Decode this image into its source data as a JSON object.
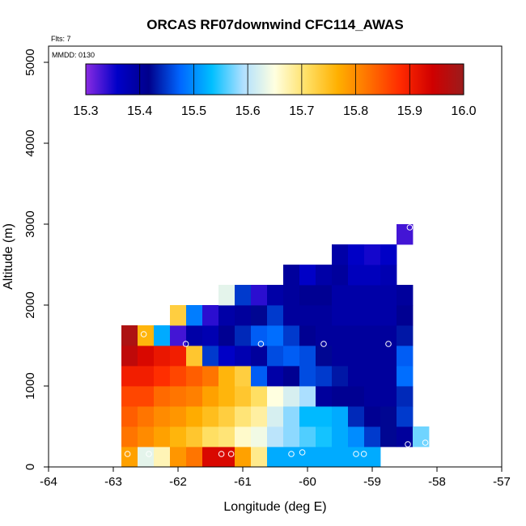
{
  "chart_data": {
    "type": "heatmap",
    "title": "ORCAS RF07downwind CFC114_AWAS",
    "flights_note": "Flts: 7",
    "date_note": "MMDD: 0130",
    "xlabel": "Longitude (deg E)",
    "ylabel": "Altitude (m)",
    "xlim": [
      -64,
      -57
    ],
    "ylim": [
      0,
      5200
    ],
    "x_ticks": [
      -64,
      -63,
      -62,
      -61,
      -60,
      -59,
      -58,
      -57
    ],
    "x_tick_labels": [
      "-64",
      "-63",
      "-62",
      "-61",
      "-60",
      "-59",
      "-58",
      "-57"
    ],
    "y_ticks": [
      0,
      1000,
      2000,
      3000,
      4000,
      5000
    ],
    "y_tick_labels": [
      "0",
      "1000",
      "2000",
      "3000",
      "4000",
      "5000"
    ],
    "cell_width_deg": 0.25,
    "cell_height_m": 250,
    "x_centers": [
      -62.75,
      -62.5,
      -62.25,
      -62.0,
      -61.75,
      -61.5,
      -61.25,
      -61.0,
      -60.75,
      -60.5,
      -60.25,
      -60.0,
      -59.75,
      -59.5,
      -59.25,
      -59.0,
      -58.75,
      -58.5,
      -58.25
    ],
    "y_centers": [
      125,
      375,
      625,
      875,
      1125,
      1375,
      1625,
      1875,
      2125,
      2375,
      2625,
      2875
    ],
    "values_by_altitude_bin": [
      [
        15.78,
        15.63,
        15.67,
        15.79,
        15.82,
        15.93,
        15.93,
        15.78,
        15.69,
        15.52,
        15.52,
        15.52,
        15.52,
        15.52,
        15.52,
        15.52,
        null,
        null,
        null
      ],
      [
        15.82,
        15.8,
        15.78,
        15.76,
        15.74,
        15.71,
        15.7,
        15.66,
        15.64,
        15.6,
        15.58,
        15.56,
        15.54,
        15.52,
        15.5,
        15.45,
        15.42,
        15.4,
        15.57
      ],
      [
        15.84,
        15.82,
        15.8,
        15.79,
        15.77,
        15.75,
        15.73,
        15.7,
        15.68,
        15.62,
        15.58,
        15.53,
        15.53,
        15.52,
        15.44,
        15.41,
        15.42,
        15.45,
        null
      ],
      [
        15.86,
        15.86,
        15.83,
        15.82,
        15.81,
        15.78,
        15.76,
        15.74,
        15.71,
        15.65,
        15.62,
        15.59,
        15.4,
        15.41,
        15.41,
        15.4,
        15.4,
        15.44,
        null
      ],
      [
        15.9,
        15.9,
        15.88,
        15.86,
        15.84,
        15.82,
        15.76,
        15.73,
        15.47,
        15.39,
        15.41,
        15.46,
        15.45,
        15.43,
        15.4,
        15.4,
        15.4,
        15.48,
        null
      ],
      [
        15.96,
        15.93,
        15.91,
        15.9,
        15.74,
        15.45,
        15.36,
        15.38,
        15.4,
        15.46,
        15.47,
        15.46,
        15.42,
        15.4,
        15.4,
        15.4,
        15.4,
        15.47,
        null
      ],
      [
        15.98,
        15.76,
        15.52,
        15.33,
        15.39,
        15.38,
        15.41,
        15.44,
        15.47,
        15.48,
        15.45,
        15.41,
        15.4,
        15.4,
        15.4,
        15.4,
        15.4,
        15.43,
        null
      ],
      [
        null,
        null,
        null,
        15.73,
        15.49,
        15.34,
        15.39,
        15.4,
        15.42,
        15.45,
        15.4,
        15.4,
        15.4,
        15.39,
        15.39,
        15.39,
        15.39,
        15.41,
        null
      ],
      [
        null,
        null,
        null,
        null,
        null,
        null,
        15.63,
        15.45,
        15.34,
        15.39,
        15.4,
        15.41,
        15.41,
        15.39,
        15.39,
        15.39,
        15.39,
        15.4,
        null
      ],
      [
        null,
        null,
        null,
        null,
        null,
        null,
        null,
        null,
        null,
        null,
        15.4,
        15.36,
        15.39,
        15.4,
        15.37,
        15.37,
        15.38,
        null,
        null
      ],
      [
        null,
        null,
        null,
        null,
        null,
        null,
        null,
        null,
        null,
        null,
        null,
        null,
        null,
        15.39,
        15.36,
        15.35,
        15.36,
        null,
        null
      ],
      [
        null,
        null,
        null,
        null,
        null,
        null,
        null,
        null,
        null,
        null,
        null,
        null,
        null,
        null,
        null,
        null,
        null,
        15.33,
        null
      ]
    ],
    "sample_points": [
      {
        "lon": -62.78,
        "alt": 160
      },
      {
        "lon": -62.45,
        "alt": 160
      },
      {
        "lon": -61.33,
        "alt": 160
      },
      {
        "lon": -61.18,
        "alt": 160
      },
      {
        "lon": -60.25,
        "alt": 160
      },
      {
        "lon": -60.08,
        "alt": 180
      },
      {
        "lon": -59.25,
        "alt": 160
      },
      {
        "lon": -59.13,
        "alt": 160
      },
      {
        "lon": -58.45,
        "alt": 280
      },
      {
        "lon": -58.18,
        "alt": 300
      },
      {
        "lon": -62.53,
        "alt": 1640
      },
      {
        "lon": -61.88,
        "alt": 1520
      },
      {
        "lon": -60.72,
        "alt": 1520
      },
      {
        "lon": -59.75,
        "alt": 1520
      },
      {
        "lon": -58.75,
        "alt": 1520
      },
      {
        "lon": -58.42,
        "alt": 2960
      }
    ],
    "colorbar": {
      "min": 15.3,
      "max": 16.0,
      "tick_values": [
        15.3,
        15.4,
        15.5,
        15.6,
        15.7,
        15.8,
        15.9,
        16.0
      ],
      "tick_labels": [
        "15.3",
        "15.4",
        "15.5",
        "15.6",
        "15.7",
        "15.8",
        "15.9",
        "16.0"
      ],
      "color_stops": [
        "#8a2be2",
        "#0000c8",
        "#00008b",
        "#0066ff",
        "#00bfff",
        "#b0e0ff",
        "#ffffe0",
        "#ffe066",
        "#ffb000",
        "#ff7000",
        "#ff2a00",
        "#d00000",
        "#9b1c1c"
      ]
    },
    "marker_color": "#ffffff",
    "no_data_color": "#ffffff"
  }
}
